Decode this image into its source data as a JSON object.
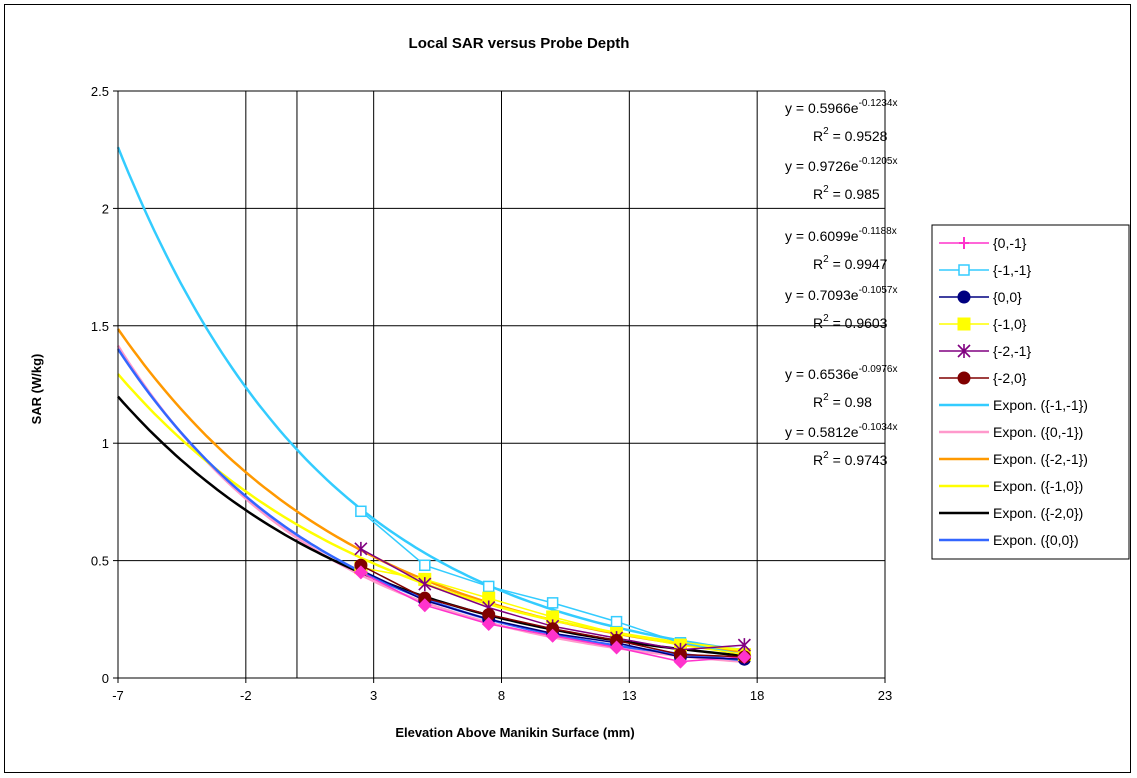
{
  "chart_data": {
    "type": "scatter",
    "title": "Local SAR versus Probe Depth",
    "xlabel": "Elevation Above Manikin Surface (mm)",
    "ylabel": "SAR (W/kg)",
    "xlim": [
      -7,
      23
    ],
    "ylim": [
      0,
      2.5
    ],
    "x_ticks": [
      -7,
      -2,
      3,
      8,
      13,
      18,
      23
    ],
    "y_ticks": [
      0,
      0.5,
      1,
      1.5,
      2,
      2.5
    ],
    "y_tick_labels": [
      "0",
      "0.5",
      "1",
      "1.5",
      "2",
      "2.5"
    ],
    "extra_vertical_gridline": 0,
    "grid": true,
    "legend_position": "right",
    "series": [
      {
        "name": "{0,-1}",
        "color": "#FF33CC",
        "marker": "plus",
        "x": [
          2.5,
          5,
          7.5,
          10,
          12.5,
          15,
          17.5
        ],
        "y": [
          0.45,
          0.31,
          0.23,
          0.18,
          0.13,
          0.07,
          0.09
        ]
      },
      {
        "name": "{-1,-1}",
        "color": "#33CCFF",
        "marker": "square-open",
        "x": [
          2.5,
          5,
          7.5,
          10,
          12.5,
          15,
          17.5
        ],
        "y": [
          0.71,
          0.48,
          0.39,
          0.32,
          0.24,
          0.15,
          0.1
        ]
      },
      {
        "name": "{0,0}",
        "color": "#000080",
        "marker": "circle",
        "x": [
          2.5,
          5,
          7.5,
          10,
          12.5,
          15,
          17.5
        ],
        "y": [
          0.46,
          0.33,
          0.25,
          0.19,
          0.15,
          0.09,
          0.08
        ]
      },
      {
        "name": "{-1,0}",
        "color": "#FFFF00",
        "marker": "square",
        "x": [
          2.5,
          5,
          7.5,
          10,
          12.5,
          15,
          17.5
        ],
        "y": [
          0.47,
          0.42,
          0.34,
          0.26,
          0.19,
          0.14,
          0.1
        ]
      },
      {
        "name": "{-2,-1}",
        "color": "#800080",
        "marker": "star",
        "x": [
          2.5,
          5,
          7.5,
          10,
          12.5,
          15,
          17.5
        ],
        "y": [
          0.55,
          0.4,
          0.3,
          0.22,
          0.17,
          0.12,
          0.14
        ]
      },
      {
        "name": "{-2,0}",
        "color": "#800000",
        "marker": "circle",
        "x": [
          2.5,
          5,
          7.5,
          10,
          12.5,
          15,
          17.5
        ],
        "y": [
          0.48,
          0.34,
          0.27,
          0.21,
          0.16,
          0.1,
          0.09
        ]
      }
    ],
    "trendlines": [
      {
        "name": "Expon. ({-1,-1})",
        "color": "#33CCFF",
        "a": 0.9726,
        "b": -0.1205
      },
      {
        "name": "Expon. ({0,-1})",
        "color": "#FF99CC",
        "a": 0.5966,
        "b": -0.1234
      },
      {
        "name": "Expon. ({-2,-1})",
        "color": "#FF9900",
        "a": 0.7093,
        "b": -0.1057
      },
      {
        "name": "Expon. ({-1,0})",
        "color": "#FFFF00",
        "a": 0.6536,
        "b": -0.0976
      },
      {
        "name": "Expon. ({-2,0})",
        "color": "#000000",
        "a": 0.5812,
        "b": -0.1034
      },
      {
        "name": "Expon. ({0,0})",
        "color": "#3366FF",
        "a": 0.6099,
        "b": -0.1188
      }
    ],
    "trendline_range": [
      -7,
      17.5
    ],
    "annotations": [
      {
        "y_prefix": "y = 0.5966e",
        "exponent": "-0.1234x",
        "r2": " = 0.9528"
      },
      {
        "y_prefix": "y = 0.9726e",
        "exponent": "-0.1205x",
        "r2": " = 0.985"
      },
      {
        "y_prefix": "y = 0.6099e",
        "exponent": "-0.1188x",
        "r2": " = 0.9947"
      },
      {
        "y_prefix": "y = 0.7093e",
        "exponent": "-0.1057x",
        "r2": " = 0.9603"
      },
      {
        "y_prefix": "y = 0.6536e",
        "exponent": "-0.0976x",
        "r2": " = 0.98"
      },
      {
        "y_prefix": "y = 0.5812e",
        "exponent": "-0.1034x",
        "r2": " = 0.9743"
      }
    ],
    "r2_symbol": "R",
    "r2_superscript": "2"
  }
}
